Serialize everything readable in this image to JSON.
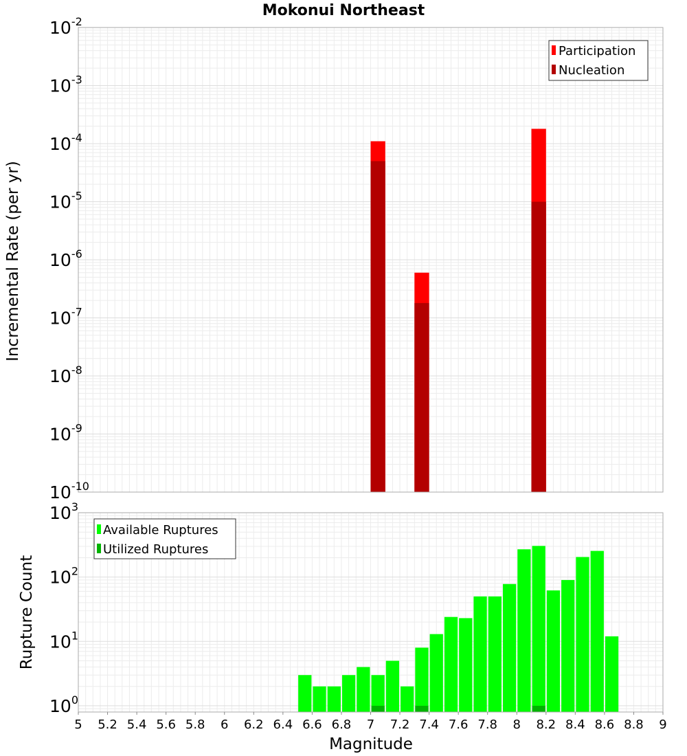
{
  "chart_data": [
    {
      "type": "bar",
      "title": "Mokonui Northeast",
      "ylabel": "Incremental Rate (per yr)",
      "xlabel": "",
      "yscale": "log",
      "ylim": [
        1e-10,
        0.01
      ],
      "xlim": [
        5,
        9
      ],
      "ytick_exponents": [
        "-10",
        "-9",
        "-8",
        "-7",
        "-6",
        "-5",
        "-4",
        "-3",
        "-2"
      ],
      "tick_base": "10",
      "bar_width": 0.1,
      "legend": {
        "position": "top-right",
        "entries": [
          "Participation",
          "Nucleation"
        ]
      },
      "colors": {
        "Participation": "#ff0000",
        "Nucleation": "#b30000"
      },
      "x": [
        7.05,
        7.35,
        8.15
      ],
      "series": [
        {
          "name": "Participation",
          "values": [
            0.00011,
            6e-07,
            0.00018
          ]
        },
        {
          "name": "Nucleation",
          "values": [
            5e-05,
            1.8e-07,
            1e-05
          ]
        }
      ]
    },
    {
      "type": "bar",
      "title": "",
      "ylabel": "Rupture Count",
      "xlabel": "Magnitude",
      "yscale": "log",
      "ylim": [
        0.8,
        1000
      ],
      "xlim": [
        5,
        9
      ],
      "ytick_exponents": [
        "0",
        "1",
        "2",
        "3"
      ],
      "tick_base": "10",
      "bar_width": 0.1,
      "xticks": [
        "5",
        "5.2",
        "5.4",
        "5.6",
        "5.8",
        "6",
        "6.2",
        "6.4",
        "6.6",
        "6.8",
        "7",
        "7.2",
        "7.4",
        "7.6",
        "7.8",
        "8",
        "8.2",
        "8.4",
        "8.6",
        "8.8",
        "9"
      ],
      "legend": {
        "position": "top-left",
        "entries": [
          "Available Ruptures",
          "Utilized Ruptures"
        ]
      },
      "colors": {
        "Available Ruptures": "#00ff00",
        "Utilized Ruptures": "#00b300"
      },
      "x": [
        6.55,
        6.65,
        6.75,
        6.85,
        6.95,
        7.05,
        7.15,
        7.25,
        7.35,
        7.45,
        7.55,
        7.65,
        7.75,
        7.85,
        7.95,
        8.05,
        8.15,
        8.25,
        8.35,
        8.45,
        8.55,
        8.65
      ],
      "series": [
        {
          "name": "Available Ruptures",
          "values": [
            3,
            2,
            2,
            3,
            4,
            3,
            5,
            2,
            8,
            13,
            24,
            23,
            50,
            50,
            78,
            270,
            305,
            62,
            90,
            205,
            255,
            12
          ]
        },
        {
          "name": "Utilized Ruptures",
          "values": [
            0,
            0,
            0,
            0,
            0,
            1,
            0,
            0,
            1,
            0,
            0,
            0,
            0,
            0,
            0,
            0,
            1,
            0,
            0,
            0,
            0,
            0
          ]
        }
      ]
    }
  ]
}
